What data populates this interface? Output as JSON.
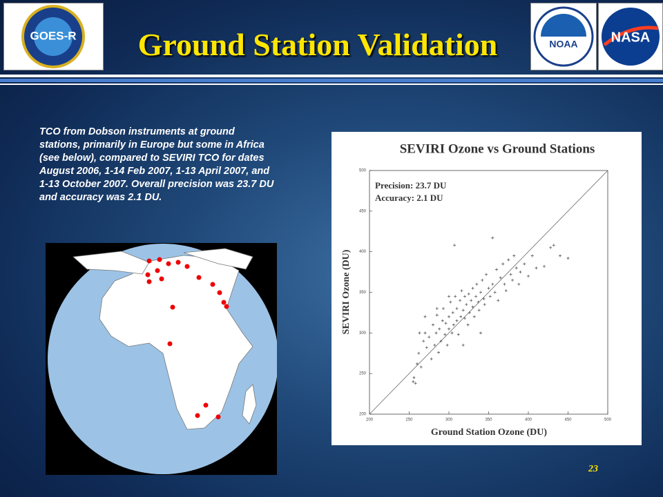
{
  "slide": {
    "title": "Ground Station Validation",
    "body": "TCO from Dobson instruments at ground stations, primarily in Europe but some in Africa (see below), compared to SEVIRI TCO for dates August 2006, 1-14 Feb 2007, 1-13 April 2007, and 1-13 October 2007.  Overall precision was 23.7 DU and accuracy was  2.1 DU.",
    "page_number": "23",
    "logos": [
      "GOES-R",
      "NOAA",
      "NASA"
    ]
  },
  "chart_data": {
    "type": "scatter",
    "title": "SEVIRI Ozone vs Ground Stations",
    "annotations": [
      "Precision: 23.7 DU",
      "Accuracy: 2.1 DU"
    ],
    "x_label": "Ground Station Ozone (DU)",
    "y_label": "SEVIRI Ozone (DU)",
    "xlim": [
      200,
      500
    ],
    "ylim": [
      200,
      500
    ],
    "xticks": [
      200,
      250,
      300,
      350,
      400,
      450,
      500
    ],
    "yticks": [
      200,
      250,
      300,
      350,
      400,
      450,
      500
    ],
    "color": "#555555",
    "reference_line": true,
    "x": [
      255,
      256,
      258,
      260,
      262,
      265,
      268,
      270,
      272,
      275,
      278,
      280,
      282,
      284,
      285,
      287,
      288,
      290,
      292,
      293,
      295,
      296,
      298,
      300,
      300,
      302,
      304,
      305,
      306,
      308,
      310,
      310,
      312,
      314,
      315,
      316,
      318,
      320,
      320,
      322,
      324,
      325,
      326,
      328,
      330,
      330,
      332,
      334,
      335,
      337,
      338,
      340,
      342,
      344,
      345,
      347,
      350,
      352,
      355,
      358,
      360,
      362,
      365,
      368,
      370,
      372,
      375,
      378,
      380,
      382,
      385,
      388,
      390,
      395,
      400,
      405,
      410,
      420,
      428,
      432,
      440,
      450,
      307,
      355,
      263,
      270,
      285,
      300,
      318,
      340
    ],
    "y": [
      240,
      245,
      238,
      262,
      275,
      258,
      290,
      300,
      282,
      295,
      268,
      310,
      285,
      300,
      322,
      276,
      305,
      290,
      315,
      330,
      298,
      312,
      285,
      320,
      305,
      338,
      300,
      325,
      310,
      345,
      315,
      330,
      298,
      340,
      320,
      352,
      328,
      318,
      345,
      335,
      310,
      348,
      325,
      340,
      332,
      355,
      320,
      345,
      360,
      338,
      328,
      350,
      365,
      342,
      335,
      372,
      355,
      345,
      360,
      350,
      378,
      340,
      368,
      385,
      360,
      352,
      390,
      372,
      365,
      395,
      380,
      360,
      375,
      385,
      370,
      395,
      380,
      382,
      405,
      408,
      395,
      392,
      408,
      417,
      300,
      320,
      330,
      345,
      285,
      300
    ]
  }
}
